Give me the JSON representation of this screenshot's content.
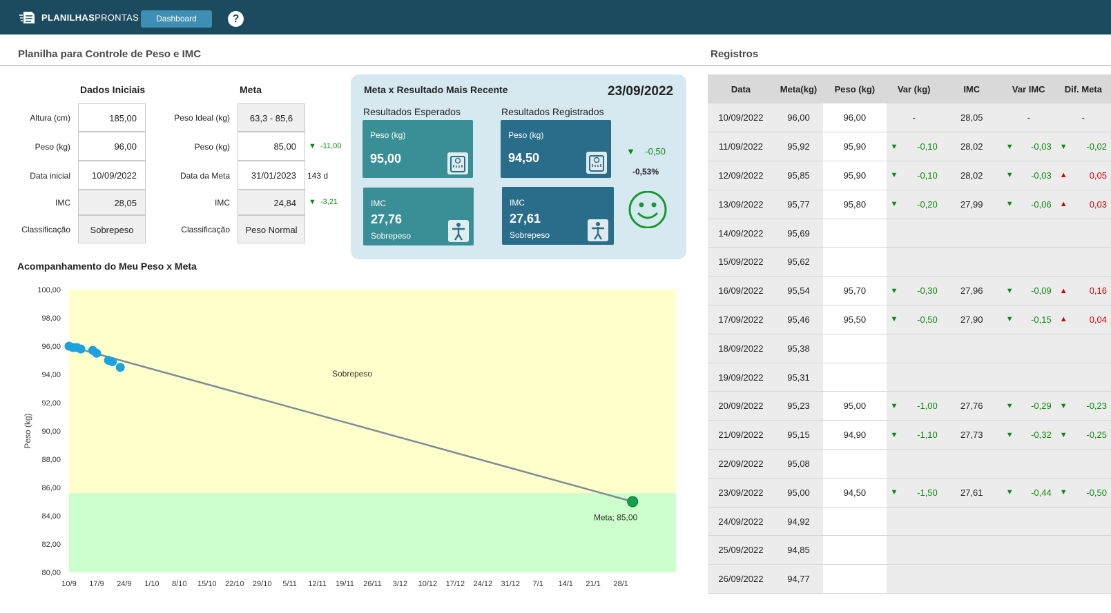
{
  "topbar": {
    "brand_bold": "PLANILHAS",
    "brand_light": "PRONTAS",
    "dashboard_label": "Dashboard",
    "help_label": "?"
  },
  "header": {
    "title": "Planilha para Controle de Peso e IMC",
    "registros_title": "Registros"
  },
  "dados_iniciais": {
    "heading": "Dados Iniciais",
    "altura_label": "Altura (cm)",
    "altura": "185,00",
    "peso_label": "Peso (kg)",
    "peso": "96,00",
    "data_label": "Data inicial",
    "data": "10/09/2022",
    "imc_label": "IMC",
    "imc": "28,05",
    "classificacao_label": "Classificação",
    "classificacao": "Sobrepeso"
  },
  "meta": {
    "heading": "Meta",
    "peso_ideal_label": "Peso Ideal (kg)",
    "peso_ideal": "63,3 - 85,6",
    "peso_label": "Peso (kg)",
    "peso": "85,00",
    "peso_diff": "-11,00",
    "data_label": "Data da Meta",
    "data": "31/01/2023",
    "dias": "143 d",
    "imc_label": "IMC",
    "imc": "24,84",
    "imc_diff": "-3,21",
    "classificacao_label": "Classificação",
    "classificacao": "Peso Normal"
  },
  "resultado": {
    "title": "Meta x Resultado Mais Recente",
    "date": "23/09/2022",
    "esperados_label": "Resultados Esperados",
    "registrados_label": "Resultados Registrados",
    "esp_peso_label": "Peso (kg)",
    "esp_peso": "95,00",
    "esp_imc_label": "IMC",
    "esp_imc": "27,76",
    "esp_class": "Sobrepeso",
    "reg_peso_label": "Peso (kg)",
    "reg_peso": "94,50",
    "reg_imc_label": "IMC",
    "reg_imc": "27,61",
    "reg_class": "Sobrepeso",
    "diff": "-0,50",
    "diff_pct": "-0,53%"
  },
  "chart_title": "Acompanhamento do Meu Peso x Meta",
  "chart_data": {
    "type": "line",
    "ylabel": "Peso (kg)",
    "ylim": [
      80,
      100
    ],
    "y_ticks": [
      "80,00",
      "82,00",
      "84,00",
      "86,00",
      "88,00",
      "90,00",
      "92,00",
      "94,00",
      "96,00",
      "98,00",
      "100,00"
    ],
    "x_ticks": [
      "10/9",
      "17/9",
      "24/9",
      "1/10",
      "8/10",
      "15/10",
      "22/10",
      "29/10",
      "5/11",
      "12/11",
      "19/11",
      "26/11",
      "3/12",
      "10/12",
      "17/12",
      "24/12",
      "31/12",
      "7/1",
      "14/1",
      "21/1",
      "28/1"
    ],
    "zones": [
      {
        "name": "Sobrepeso",
        "from": 85.6,
        "to": 100,
        "color": "#ffffcc"
      },
      {
        "name": "",
        "from": 80,
        "to": 85.6,
        "color": "#ccffcc"
      }
    ],
    "zone_label": "Sobrepeso",
    "meta_line": {
      "start_day": 0,
      "start": 96.0,
      "end_day": 143,
      "end": 85.0
    },
    "registros": [
      {
        "day": 0,
        "peso": 96.0
      },
      {
        "day": 1,
        "peso": 95.9
      },
      {
        "day": 2,
        "peso": 95.9
      },
      {
        "day": 3,
        "peso": 95.8
      },
      {
        "day": 6,
        "peso": 95.7
      },
      {
        "day": 7,
        "peso": 95.5
      },
      {
        "day": 10,
        "peso": 95.0
      },
      {
        "day": 11,
        "peso": 94.9
      },
      {
        "day": 13,
        "peso": 94.5
      }
    ],
    "meta_label": "Meta; 85,00"
  },
  "registros": {
    "headers": [
      "Data",
      "Meta(kg)",
      "Peso (kg)",
      "Var (kg)",
      "IMC",
      "Var IMC",
      "Dif. Meta"
    ],
    "rows": [
      {
        "data": "10/09/2022",
        "meta": "96,00",
        "peso": "96,00",
        "var": "-",
        "var_dir": "",
        "imc": "28,05",
        "varimc": "-",
        "varimc_dir": "",
        "dif": "-",
        "dif_dir": ""
      },
      {
        "data": "11/09/2022",
        "meta": "95,92",
        "peso": "95,90",
        "var": "-0,10",
        "var_dir": "down",
        "imc": "28,02",
        "varimc": "-0,03",
        "varimc_dir": "down",
        "dif": "-0,02",
        "dif_dir": "down"
      },
      {
        "data": "12/09/2022",
        "meta": "95,85",
        "peso": "95,90",
        "var": "-0,10",
        "var_dir": "down",
        "imc": "28,02",
        "varimc": "-0,03",
        "varimc_dir": "down",
        "dif": "0,05",
        "dif_dir": "up"
      },
      {
        "data": "13/09/2022",
        "meta": "95,77",
        "peso": "95,80",
        "var": "-0,20",
        "var_dir": "down",
        "imc": "27,99",
        "varimc": "-0,06",
        "varimc_dir": "down",
        "dif": "0,03",
        "dif_dir": "up"
      },
      {
        "data": "14/09/2022",
        "meta": "95,69",
        "peso": "",
        "var": "",
        "var_dir": "",
        "imc": "",
        "varimc": "",
        "varimc_dir": "",
        "dif": "",
        "dif_dir": ""
      },
      {
        "data": "15/09/2022",
        "meta": "95,62",
        "peso": "",
        "var": "",
        "var_dir": "",
        "imc": "",
        "varimc": "",
        "varimc_dir": "",
        "dif": "",
        "dif_dir": ""
      },
      {
        "data": "16/09/2022",
        "meta": "95,54",
        "peso": "95,70",
        "var": "-0,30",
        "var_dir": "down",
        "imc": "27,96",
        "varimc": "-0,09",
        "varimc_dir": "down",
        "dif": "0,16",
        "dif_dir": "up"
      },
      {
        "data": "17/09/2022",
        "meta": "95,46",
        "peso": "95,50",
        "var": "-0,50",
        "var_dir": "down",
        "imc": "27,90",
        "varimc": "-0,15",
        "varimc_dir": "down",
        "dif": "0,04",
        "dif_dir": "up"
      },
      {
        "data": "18/09/2022",
        "meta": "95,38",
        "peso": "",
        "var": "",
        "var_dir": "",
        "imc": "",
        "varimc": "",
        "varimc_dir": "",
        "dif": "",
        "dif_dir": ""
      },
      {
        "data": "19/09/2022",
        "meta": "95,31",
        "peso": "",
        "var": "",
        "var_dir": "",
        "imc": "",
        "varimc": "",
        "varimc_dir": "",
        "dif": "",
        "dif_dir": ""
      },
      {
        "data": "20/09/2022",
        "meta": "95,23",
        "peso": "95,00",
        "var": "-1,00",
        "var_dir": "down",
        "imc": "27,76",
        "varimc": "-0,29",
        "varimc_dir": "down",
        "dif": "-0,23",
        "dif_dir": "down"
      },
      {
        "data": "21/09/2022",
        "meta": "95,15",
        "peso": "94,90",
        "var": "-1,10",
        "var_dir": "down",
        "imc": "27,73",
        "varimc": "-0,32",
        "varimc_dir": "down",
        "dif": "-0,25",
        "dif_dir": "down"
      },
      {
        "data": "22/09/2022",
        "meta": "95,08",
        "peso": "",
        "var": "",
        "var_dir": "",
        "imc": "",
        "varimc": "",
        "varimc_dir": "",
        "dif": "",
        "dif_dir": ""
      },
      {
        "data": "23/09/2022",
        "meta": "95,00",
        "peso": "94,50",
        "var": "-1,50",
        "var_dir": "down",
        "imc": "27,61",
        "varimc": "-0,44",
        "varimc_dir": "down",
        "dif": "-0,50",
        "dif_dir": "down"
      },
      {
        "data": "24/09/2022",
        "meta": "94,92",
        "peso": "",
        "var": "",
        "var_dir": "",
        "imc": "",
        "varimc": "",
        "varimc_dir": "",
        "dif": "",
        "dif_dir": ""
      },
      {
        "data": "25/09/2022",
        "meta": "94,85",
        "peso": "",
        "var": "",
        "var_dir": "",
        "imc": "",
        "varimc": "",
        "varimc_dir": "",
        "dif": "",
        "dif_dir": ""
      },
      {
        "data": "26/09/2022",
        "meta": "94,77",
        "peso": "",
        "var": "",
        "var_dir": "",
        "imc": "",
        "varimc": "",
        "varimc_dir": "",
        "dif": "",
        "dif_dir": ""
      }
    ]
  },
  "colors": {
    "topbar": "#1c4a5e",
    "accent": "#3e8fb3",
    "points": "#1aa3e0",
    "meta_point": "#12a34a",
    "line": "#7a8c99"
  }
}
